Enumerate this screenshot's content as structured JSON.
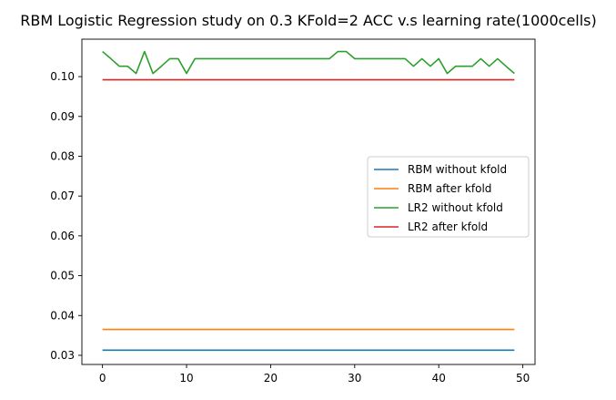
{
  "chart_data": {
    "type": "line",
    "title": "RBM Logistic Regression study on 0.3 KFold=2 ACC v.s learning rate(1000cells)",
    "xlabel": "",
    "ylabel": "",
    "xlim": [
      -2.45,
      51.45
    ],
    "ylim": [
      0.0277,
      0.1094
    ],
    "xticks": [
      0,
      10,
      20,
      30,
      40,
      50
    ],
    "yticks": [
      0.03,
      0.04,
      0.05,
      0.06,
      0.07,
      0.08,
      0.09,
      0.1
    ],
    "ytick_labels": [
      "0.03",
      "0.04",
      "0.05",
      "0.06",
      "0.07",
      "0.08",
      "0.09",
      "0.10"
    ],
    "grid": false,
    "legend_position": "center-right",
    "series": [
      {
        "name": "RBM without kfold",
        "color": "#1f77b4",
        "x": [
          0,
          49
        ],
        "y": [
          0.0313,
          0.0313
        ]
      },
      {
        "name": "RBM after kfold",
        "color": "#ff7f0e",
        "x": [
          0,
          49
        ],
        "y": [
          0.0365,
          0.0365
        ]
      },
      {
        "name": "LR2 without kfold",
        "color": "#2ca02c",
        "x": [
          0,
          1,
          2,
          3,
          4,
          5,
          6,
          7,
          8,
          9,
          10,
          11,
          12,
          13,
          14,
          15,
          16,
          17,
          18,
          19,
          20,
          21,
          22,
          23,
          24,
          25,
          26,
          27,
          28,
          29,
          30,
          31,
          32,
          33,
          34,
          35,
          36,
          37,
          38,
          39,
          40,
          41,
          42,
          43,
          44,
          45,
          46,
          47,
          48,
          49
        ],
        "y": [
          0.1063,
          0.1045,
          0.1026,
          0.1026,
          0.1008,
          0.1063,
          0.1008,
          0.1026,
          0.1045,
          0.1045,
          0.1008,
          0.1045,
          0.1045,
          0.1045,
          0.1045,
          0.1045,
          0.1045,
          0.1045,
          0.1045,
          0.1045,
          0.1045,
          0.1045,
          0.1045,
          0.1045,
          0.1045,
          0.1045,
          0.1045,
          0.1045,
          0.1063,
          0.1063,
          0.1045,
          0.1045,
          0.1045,
          0.1045,
          0.1045,
          0.1045,
          0.1045,
          0.1026,
          0.1045,
          0.1026,
          0.1045,
          0.1008,
          0.1026,
          0.1026,
          0.1026,
          0.1045,
          0.1026,
          0.1045,
          0.1026,
          0.1008
        ]
      },
      {
        "name": "LR2 after kfold",
        "color": "#d62728",
        "x": [
          0,
          49
        ],
        "y": [
          0.0992,
          0.0992
        ]
      }
    ]
  }
}
